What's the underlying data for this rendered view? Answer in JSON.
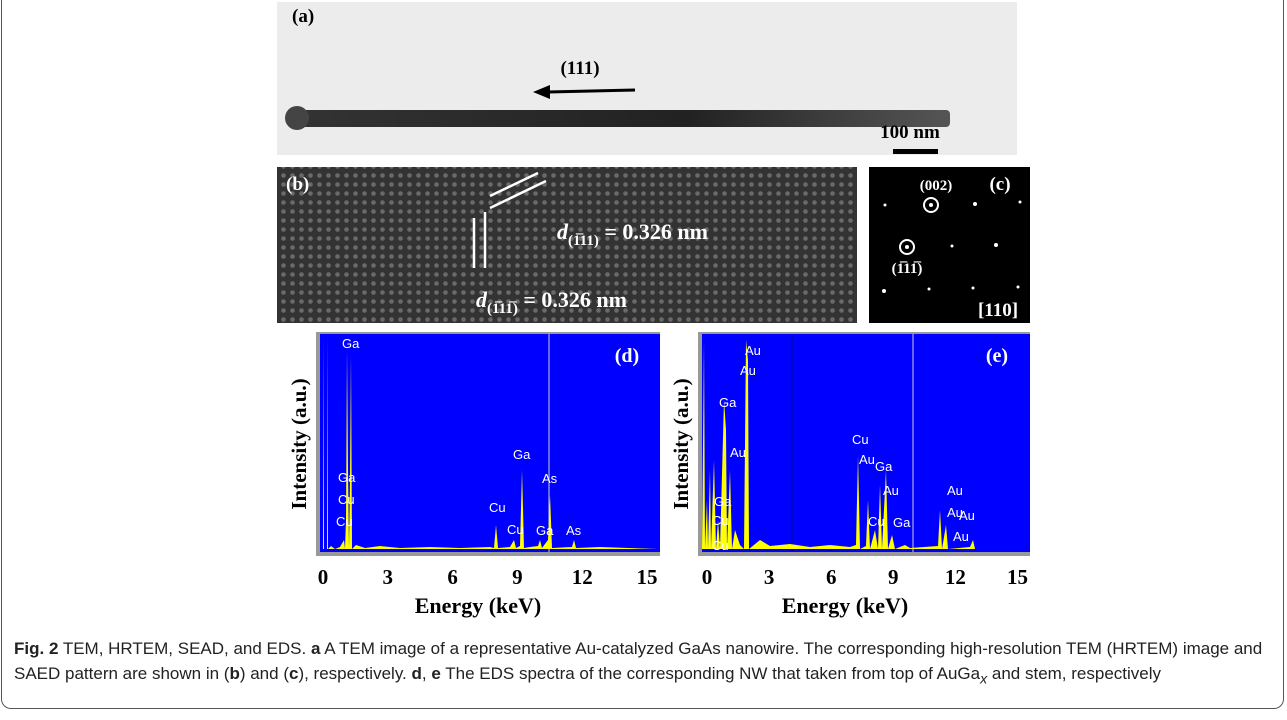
{
  "panels": {
    "a": {
      "label": "(a)",
      "direction": "(111)",
      "scale": "100 nm"
    },
    "b": {
      "label": "(b)",
      "spacing_1": {
        "symbol": "d",
        "plane": "(1̅11)",
        "value": " = 0.326 nm"
      },
      "spacing_2": {
        "symbol": "d",
        "plane": "(1̅11̅)",
        "value": " = 0.326 nm"
      }
    },
    "c": {
      "label": "(c)",
      "spot_1": "(002)",
      "spot_2": "(1̅11̅)",
      "zone_axis": "[110]"
    },
    "d": {
      "label": "(d)",
      "y_label": "Intensity (a.u.)",
      "x_label": "Energy (keV)",
      "x_ticks": [
        "0",
        "3",
        "6",
        "9",
        "12",
        "15"
      ],
      "peak_labels": [
        "Ga",
        "Ga",
        "Cu",
        "Cu",
        "Cu",
        "Cu",
        "Ga",
        "As",
        "Ga",
        "As"
      ]
    },
    "e": {
      "label": "(e)",
      "y_label": "Intensity (a.u.)",
      "x_label": "Energy (keV)",
      "x_ticks": [
        "0",
        "3",
        "6",
        "9",
        "12",
        "15"
      ],
      "peak_labels": [
        "Au",
        "Au",
        "Ga",
        "Au",
        "Ga",
        "Cu",
        "Cu",
        "Cu",
        "Au",
        "Ga",
        "Au",
        "Cu",
        "Ga",
        "Au",
        "Au",
        "Au",
        "Au"
      ]
    }
  },
  "caption": {
    "segments": [
      "Fig. 2",
      " TEM, HRTEM, SEAD, and EDS. ",
      "a",
      " A TEM image of a representative Au-catalyzed GaAs nanowire. The corresponding high-resolution TEM (HRTEM) image and SAED pattern are shown in (",
      "b",
      ") and (",
      "c",
      "), respectively. ",
      "d",
      ", ",
      "e",
      " The EDS spectra of the corresponding NW that taken from top of AuGa",
      "x",
      " and stem, respectively"
    ]
  }
}
